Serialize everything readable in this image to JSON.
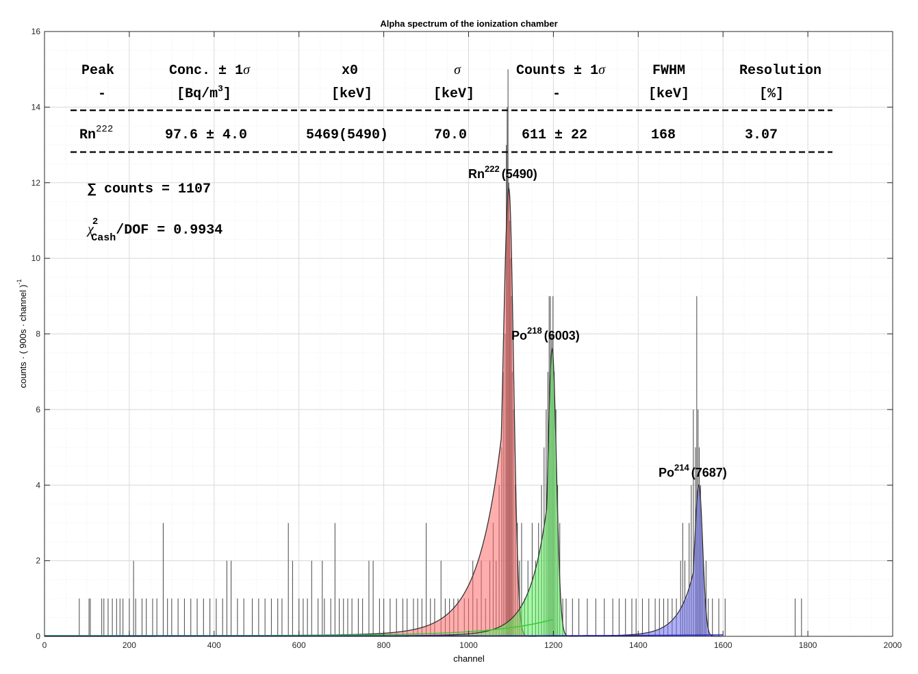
{
  "chart_data": {
    "type": "area",
    "title": "Alpha spectrum of the ionization chamber",
    "xlabel": "channel",
    "ylabel": "counts · ( 900s · channel )",
    "ylabel_sup": "-1",
    "xlim": [
      0,
      2000
    ],
    "ylim": [
      0,
      16
    ],
    "xticks": [
      "0",
      "200",
      "400",
      "600",
      "800",
      "1000",
      "1200",
      "1400",
      "1600",
      "1800",
      "2000"
    ],
    "yticks": [
      "0",
      "2",
      "4",
      "6",
      "8",
      "10",
      "12",
      "14",
      "16"
    ],
    "grid": true,
    "series": [
      {
        "name": "Rn222",
        "color": "#ff6b6b",
        "peak_x": 1095,
        "peak_y": 11.85,
        "sigma_left": 14,
        "tail": 55,
        "sigma_right": 11
      },
      {
        "name": "Po218",
        "color": "#5cf05c",
        "peak_x": 1197,
        "peak_y": 7.6,
        "sigma_left": 10,
        "tail": 40,
        "sigma_right": 10
      },
      {
        "name": "Po214",
        "color": "#7070f0",
        "peak_x": 1543,
        "peak_y": 4.0,
        "sigma_left": 10,
        "tail": 35,
        "sigma_right": 9
      }
    ],
    "histogram_spikes": [
      [
        82,
        1
      ],
      [
        105,
        1
      ],
      [
        108,
        1
      ],
      [
        135,
        1
      ],
      [
        140,
        1
      ],
      [
        150,
        1
      ],
      [
        160,
        1
      ],
      [
        170,
        1
      ],
      [
        178,
        1
      ],
      [
        185,
        1
      ],
      [
        200,
        1
      ],
      [
        210,
        2
      ],
      [
        215,
        1
      ],
      [
        230,
        1
      ],
      [
        240,
        1
      ],
      [
        255,
        1
      ],
      [
        265,
        1
      ],
      [
        280,
        3
      ],
      [
        290,
        1
      ],
      [
        300,
        1
      ],
      [
        315,
        1
      ],
      [
        330,
        1
      ],
      [
        345,
        1
      ],
      [
        360,
        1
      ],
      [
        375,
        1
      ],
      [
        390,
        1
      ],
      [
        405,
        1
      ],
      [
        420,
        1
      ],
      [
        430,
        2
      ],
      [
        440,
        2
      ],
      [
        455,
        1
      ],
      [
        470,
        1
      ],
      [
        490,
        1
      ],
      [
        505,
        1
      ],
      [
        520,
        1
      ],
      [
        535,
        1
      ],
      [
        550,
        1
      ],
      [
        560,
        1
      ],
      [
        575,
        3
      ],
      [
        585,
        2
      ],
      [
        600,
        1
      ],
      [
        610,
        1
      ],
      [
        620,
        1
      ],
      [
        630,
        2
      ],
      [
        645,
        1
      ],
      [
        655,
        2
      ],
      [
        660,
        1
      ],
      [
        675,
        1
      ],
      [
        685,
        3
      ],
      [
        695,
        1
      ],
      [
        705,
        1
      ],
      [
        715,
        1
      ],
      [
        725,
        1
      ],
      [
        740,
        1
      ],
      [
        750,
        1
      ],
      [
        765,
        2
      ],
      [
        775,
        2
      ],
      [
        790,
        1
      ],
      [
        800,
        1
      ],
      [
        815,
        1
      ],
      [
        830,
        1
      ],
      [
        845,
        1
      ],
      [
        855,
        1
      ],
      [
        870,
        1
      ],
      [
        880,
        1
      ],
      [
        890,
        1
      ],
      [
        900,
        3
      ],
      [
        910,
        1
      ],
      [
        920,
        1
      ],
      [
        935,
        2
      ],
      [
        945,
        1
      ],
      [
        955,
        1
      ],
      [
        965,
        1
      ],
      [
        975,
        1
      ],
      [
        990,
        1
      ],
      [
        1000,
        1
      ],
      [
        1010,
        2
      ],
      [
        1020,
        1
      ],
      [
        1030,
        2
      ],
      [
        1040,
        1
      ],
      [
        1050,
        2
      ],
      [
        1058,
        3
      ],
      [
        1065,
        2
      ],
      [
        1072,
        4
      ],
      [
        1078,
        5
      ],
      [
        1082,
        7
      ],
      [
        1086,
        8
      ],
      [
        1089,
        13
      ],
      [
        1091,
        14
      ],
      [
        1093,
        15
      ],
      [
        1095,
        12
      ],
      [
        1097,
        11
      ],
      [
        1099,
        10
      ],
      [
        1101,
        9
      ],
      [
        1103,
        7
      ],
      [
        1106,
        6
      ],
      [
        1110,
        4
      ],
      [
        1115,
        3
      ],
      [
        1120,
        2
      ],
      [
        1125,
        3
      ],
      [
        1132,
        1
      ],
      [
        1140,
        2
      ],
      [
        1150,
        3
      ],
      [
        1158,
        2
      ],
      [
        1165,
        3
      ],
      [
        1172,
        4
      ],
      [
        1178,
        5
      ],
      [
        1183,
        6
      ],
      [
        1187,
        7
      ],
      [
        1190,
        9
      ],
      [
        1193,
        9
      ],
      [
        1196,
        8
      ],
      [
        1199,
        9
      ],
      [
        1202,
        7
      ],
      [
        1206,
        6
      ],
      [
        1210,
        4
      ],
      [
        1215,
        3
      ],
      [
        1222,
        1
      ],
      [
        1230,
        1
      ],
      [
        1245,
        1
      ],
      [
        1260,
        1
      ],
      [
        1280,
        1
      ],
      [
        1300,
        1
      ],
      [
        1320,
        1
      ],
      [
        1340,
        1
      ],
      [
        1355,
        1
      ],
      [
        1370,
        1
      ],
      [
        1385,
        1
      ],
      [
        1395,
        1
      ],
      [
        1410,
        1
      ],
      [
        1425,
        1
      ],
      [
        1440,
        1
      ],
      [
        1450,
        1
      ],
      [
        1460,
        1
      ],
      [
        1470,
        1
      ],
      [
        1480,
        1
      ],
      [
        1490,
        1
      ],
      [
        1500,
        2
      ],
      [
        1505,
        3
      ],
      [
        1510,
        2
      ],
      [
        1515,
        1
      ],
      [
        1520,
        3
      ],
      [
        1525,
        4
      ],
      [
        1530,
        6
      ],
      [
        1535,
        5
      ],
      [
        1538,
        9
      ],
      [
        1541,
        6
      ],
      [
        1544,
        5
      ],
      [
        1547,
        4
      ],
      [
        1550,
        3
      ],
      [
        1553,
        2
      ],
      [
        1557,
        1
      ],
      [
        1560,
        2
      ],
      [
        1565,
        1
      ],
      [
        1575,
        1
      ],
      [
        1590,
        1
      ],
      [
        1605,
        1
      ],
      [
        1770,
        1
      ],
      [
        1785,
        1
      ]
    ]
  },
  "table": {
    "headers": [
      "Peak",
      "Conc. ± 1",
      "x0",
      "σ",
      "Counts ± 1",
      "FWHM",
      "Resolution"
    ],
    "units": [
      "-",
      "[Bq/m",
      "[keV]",
      "[keV]",
      "-",
      "[keV]",
      "[%]"
    ],
    "sigma": "σ",
    "units_sup": "3",
    "units_close": "]",
    "row_peak": "Rn",
    "row_peak_sup": "222",
    "row_values": [
      "97.6 ± 4.0",
      "5469(5490)",
      "70.0",
      "611 ± 22",
      "168",
      "3.07"
    ]
  },
  "summary": {
    "counts": "∑ counts = 1107",
    "chi_symbol": "χ",
    "chi_sup": "2",
    "chi_sub": "Cash",
    "chi_rest": "/DOF = 0.9934"
  },
  "peak_labels": [
    {
      "base": "Rn",
      "sup": "222",
      "energy": "(5490)"
    },
    {
      "base": "Po",
      "sup": "218",
      "energy": "(6003)"
    },
    {
      "base": "Po",
      "sup": "214",
      "energy": "(7687)"
    }
  ]
}
